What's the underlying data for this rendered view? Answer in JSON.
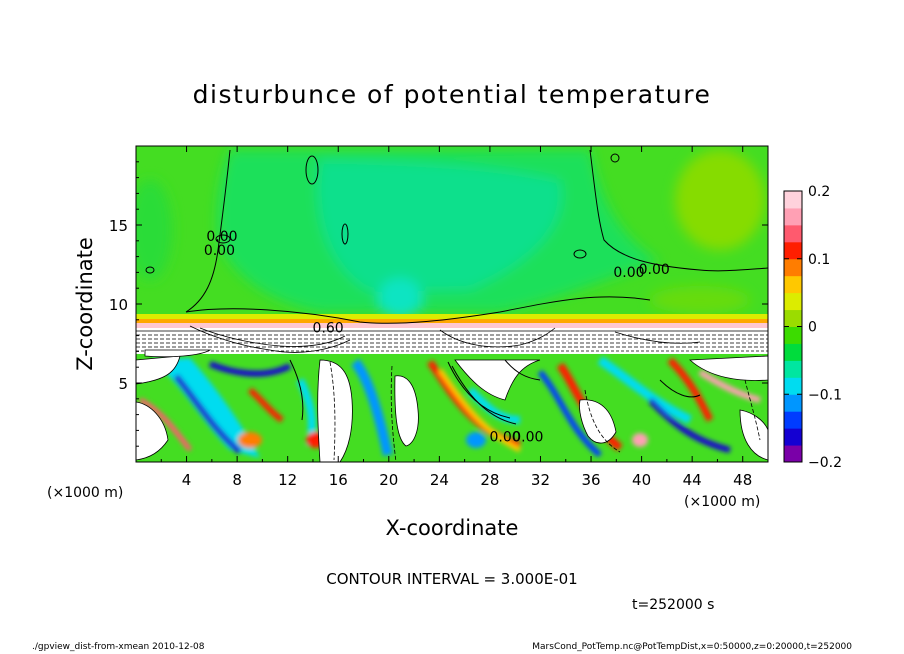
{
  "chart_data": {
    "type": "heatmap",
    "title": "disturbunce of potential temperature",
    "xlabel": "X-coordinate",
    "ylabel": "Z-coordinate",
    "x_unit_left": "(×1000 m)",
    "x_unit_right": "(×1000 m)",
    "xlim": [
      0,
      50
    ],
    "ylim": [
      0,
      20
    ],
    "x_ticks": [
      4,
      8,
      12,
      16,
      20,
      24,
      28,
      32,
      36,
      40,
      44,
      48
    ],
    "y_ticks": [
      5,
      10,
      15
    ],
    "colorbar": {
      "range": [
        -0.2,
        0.2
      ],
      "ticks": [
        0.2,
        0.1,
        0,
        -0.1,
        -0.2
      ],
      "tick_labels": [
        "0.2",
        "0.1",
        "0",
        "−0.1",
        "−0.2"
      ],
      "colors": [
        "#7a00a8",
        "#1400d2",
        "#003cff",
        "#0096ff",
        "#00dcf0",
        "#00e6a0",
        "#00dc3c",
        "#3cdc00",
        "#9bdc00",
        "#dcec00",
        "#ffc800",
        "#ff7d00",
        "#ff1e00",
        "#ff5a6e",
        "#ffa0b4",
        "#ffd2dc"
      ]
    },
    "contour_labels": [
      {
        "text": "0.00",
        "x": 6.8,
        "z": 14.0
      },
      {
        "text": "0.00",
        "x": 6.6,
        "z": 13.1
      },
      {
        "text": "0.00",
        "x": 39.0,
        "z": 11.7
      },
      {
        "text": "0.00",
        "x": 41.0,
        "z": 11.9
      },
      {
        "text": "0.60",
        "x": 15.2,
        "z": 8.2
      },
      {
        "text": "0.00",
        "x": 29.2,
        "z": 1.3
      },
      {
        "text": "0.00",
        "x": 31.0,
        "z": 1.3
      }
    ],
    "contour_interval_text": "CONTOUR INTERVAL = 3.000E-01",
    "time_text": "t=252000 s"
  },
  "footer": {
    "left": "./gpview_dist-from-xmean  2010-12-08",
    "right": "MarsCond_PotTemp.nc@PotTempDist,x=0:50000,z=0:20000,t=252000"
  }
}
